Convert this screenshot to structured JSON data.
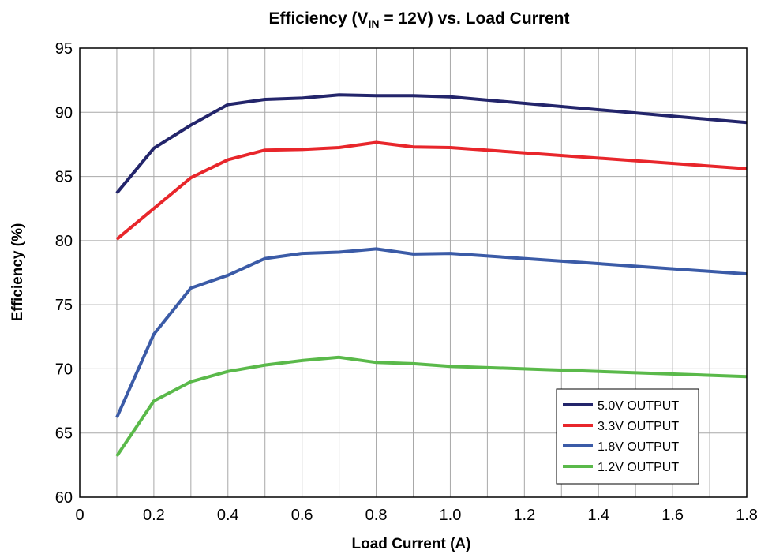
{
  "chart_data": {
    "type": "line",
    "title": {
      "prefix": "Efficiency (V",
      "subscript": "IN",
      "suffix": " = 12V) vs. Load Current"
    },
    "xlabel": "Load Current (A)",
    "ylabel": "Efficiency (%)",
    "xlim": [
      0,
      1.8
    ],
    "ylim": [
      60,
      95
    ],
    "x_ticks": [
      "0",
      "0.2",
      "0.4",
      "0.6",
      "0.8",
      "1.0",
      "1.2",
      "1.4",
      "1.6",
      "1.8"
    ],
    "x_tick_values": [
      0,
      0.2,
      0.4,
      0.6,
      0.8,
      1.0,
      1.2,
      1.4,
      1.6,
      1.8
    ],
    "y_ticks": [
      "60",
      "65",
      "70",
      "75",
      "80",
      "85",
      "90",
      "95"
    ],
    "y_tick_values": [
      60,
      65,
      70,
      75,
      80,
      85,
      90,
      95
    ],
    "grid": true,
    "legend_position": "bottom-right",
    "series": [
      {
        "name": "5.0V OUTPUT",
        "color": "#23256b",
        "x": [
          0.1,
          0.2,
          0.3,
          0.4,
          0.5,
          0.6,
          0.7,
          0.8,
          0.9,
          1.0,
          1.8
        ],
        "y": [
          83.7,
          87.2,
          89.0,
          90.6,
          91.0,
          91.1,
          91.35,
          91.3,
          91.3,
          91.2,
          89.2
        ]
      },
      {
        "name": "3.3V OUTPUT",
        "color": "#e8262b",
        "x": [
          0.1,
          0.2,
          0.3,
          0.4,
          0.5,
          0.6,
          0.7,
          0.8,
          0.9,
          1.0,
          1.8
        ],
        "y": [
          80.1,
          82.5,
          84.9,
          86.3,
          87.05,
          87.1,
          87.25,
          87.65,
          87.3,
          87.25,
          85.6
        ]
      },
      {
        "name": "1.8V OUTPUT",
        "color": "#3b5ba7",
        "x": [
          0.1,
          0.2,
          0.3,
          0.4,
          0.5,
          0.6,
          0.7,
          0.8,
          0.9,
          1.0,
          1.8
        ],
        "y": [
          66.2,
          72.7,
          76.3,
          77.3,
          78.6,
          79.0,
          79.1,
          79.35,
          78.95,
          79.0,
          77.4
        ]
      },
      {
        "name": "1.2V OUTPUT",
        "color": "#5ab94a",
        "x": [
          0.1,
          0.2,
          0.3,
          0.4,
          0.5,
          0.6,
          0.7,
          0.8,
          0.9,
          1.0,
          1.8
        ],
        "y": [
          63.2,
          67.5,
          69.0,
          69.8,
          70.3,
          70.65,
          70.9,
          70.5,
          70.4,
          70.2,
          69.4
        ]
      }
    ]
  }
}
